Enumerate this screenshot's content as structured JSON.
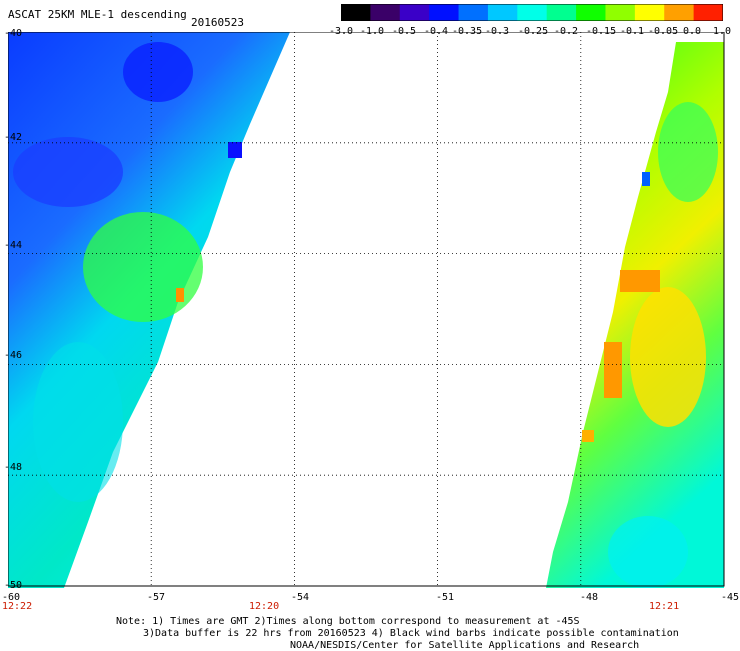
{
  "header": {
    "title": "ASCAT 25KM MLE-1 descending",
    "date": "20160523"
  },
  "colorbar": {
    "tick_labels": [
      "-3.0",
      "-1.0",
      "-0.5",
      "-0.4",
      "-0.35",
      "-0.3",
      "-0.25",
      "-0.2",
      "-0.15",
      "-0.1",
      "-0.05",
      "0.0",
      "1.0"
    ],
    "colors": [
      "#000000",
      "#3a0068",
      "#3a00c8",
      "#0010ff",
      "#0070ff",
      "#00c8ff",
      "#00ffe8",
      "#00ff90",
      "#10ff00",
      "#90ff00",
      "#ffff00",
      "#ffa000",
      "#ff2000"
    ]
  },
  "map": {
    "lon_range": [
      -60,
      -45
    ],
    "lat_range": [
      -50,
      -40
    ],
    "lon_ticks": [
      "-60",
      "-57",
      "-54",
      "-51",
      "-48",
      "-45"
    ],
    "lat_ticks": [
      "-40",
      "-42",
      "-44",
      "-46",
      "-48",
      "-50"
    ],
    "time_labels": [
      "12:22",
      "12:20",
      "12:21"
    ]
  },
  "notes": {
    "line1": "Note: 1) Times are GMT 2)Times along bottom correspond to measurement at -45S",
    "line2": "3)Data buffer is 22 hrs from 20160523 4) Black wind barbs indicate possible contamination",
    "line3": "NOAA/NESDIS/Center for Satellite Applications and Research"
  }
}
